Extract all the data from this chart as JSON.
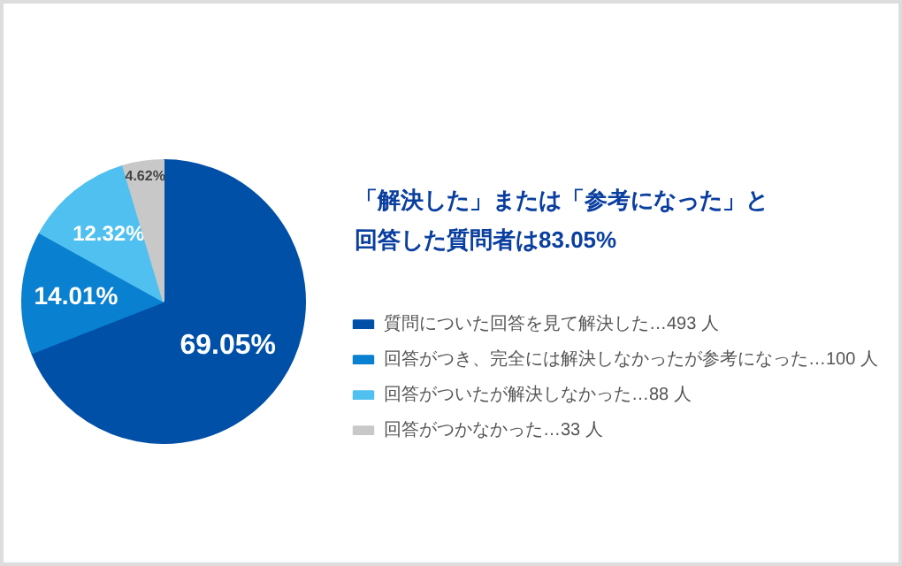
{
  "chart_data": {
    "type": "pie",
    "title": "「解決した」または「参考になった」と回答した質問者は83.05%",
    "categories": [
      "質問についた回答を見て解決した…493 人",
      "回答がつき、完全には解決しなかったが参考になった…100 人",
      "回答がついたが解決しなかった…88 人",
      "回答がつかなかった…33 人"
    ],
    "values": [
      69.05,
      14.01,
      12.32,
      4.62
    ],
    "colors": [
      "#0050a8",
      "#0a80d0",
      "#50c0f0",
      "#c8c8c8"
    ],
    "value_labels": [
      "69.05%",
      "14.01%",
      "12.32%",
      "4.62%"
    ],
    "legend": "right"
  }
}
